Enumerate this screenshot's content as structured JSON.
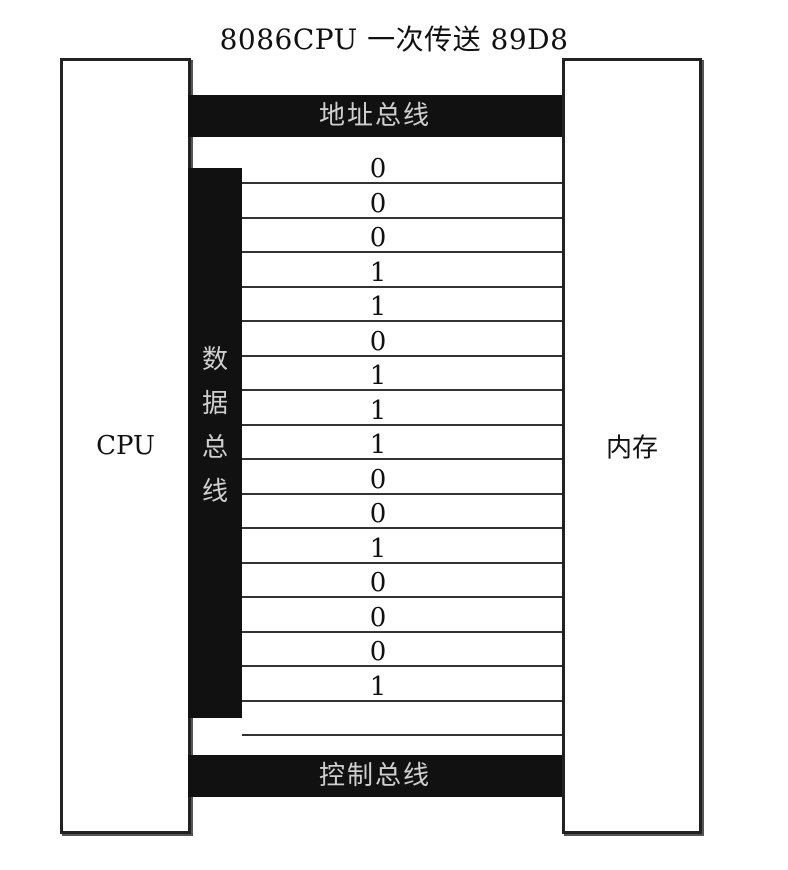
{
  "title": "8086CPU 一次传送 89D8",
  "cpu_label": "CPU",
  "memory_label": "内存",
  "address_bus_label": "地址总线",
  "data_bus_label": "数\n据\n总\n线",
  "control_bus_label": "控制总线",
  "data_bits": [
    "0",
    "0",
    "0",
    "1",
    "1",
    "0",
    "1",
    "1",
    "1",
    "0",
    "0",
    "1",
    "0",
    "0",
    "0",
    "1"
  ]
}
